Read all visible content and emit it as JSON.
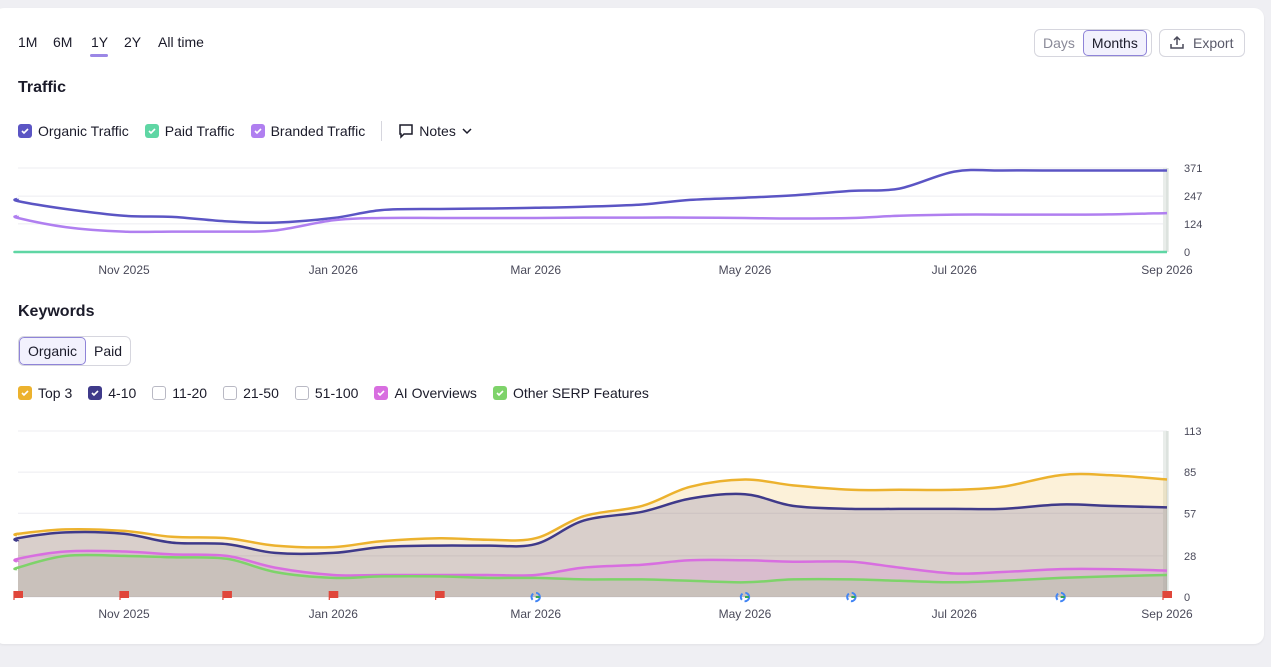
{
  "periods": [
    "1M",
    "6M",
    "1Y",
    "2Y",
    "All time"
  ],
  "active_period": "1Y",
  "granularity": {
    "days": "Days",
    "months": "Months",
    "selected": "Months"
  },
  "export_label": "Export",
  "traffic": {
    "title": "Traffic",
    "legend": [
      {
        "label": "Organic Traffic",
        "color": "#5b55c4",
        "checked": true
      },
      {
        "label": "Paid Traffic",
        "color": "#5fd6a4",
        "checked": true
      },
      {
        "label": "Branded Traffic",
        "color": "#b07ff0",
        "checked": true
      }
    ],
    "notes_label": "Notes"
  },
  "keywords": {
    "title": "Keywords",
    "tabs": [
      "Organic",
      "Paid"
    ],
    "active_tab": "Organic",
    "legend": [
      {
        "label": "Top 3",
        "color": "#ecb22e",
        "checked": true
      },
      {
        "label": "4-10",
        "color": "#3f3a8a",
        "checked": true
      },
      {
        "label": "11-20",
        "color": "#b9b9c4",
        "checked": false
      },
      {
        "label": "21-50",
        "color": "#b9b9c4",
        "checked": false
      },
      {
        "label": "51-100",
        "color": "#b9b9c4",
        "checked": false
      },
      {
        "label": "AI Overviews",
        "color": "#d86ee0",
        "checked": true
      },
      {
        "label": "Other SERP Features",
        "color": "#7ed36a",
        "checked": true
      }
    ]
  },
  "chart_data": [
    {
      "type": "line",
      "title": "Traffic",
      "x": [
        "2025-09-15",
        "2025-10-01",
        "2025-10-15",
        "2025-11-01",
        "2025-11-15",
        "2025-12-01",
        "2025-12-15",
        "2026-01-01",
        "2026-01-15",
        "2026-02-01",
        "2026-02-15",
        "2026-03-01",
        "2026-03-15",
        "2026-04-01",
        "2026-04-15",
        "2026-05-01",
        "2026-05-15",
        "2026-06-01",
        "2026-06-15",
        "2026-07-01",
        "2026-07-15",
        "2026-08-01",
        "2026-08-15",
        "2026-09-01"
      ],
      "x_tick_labels": [
        "Nov 2025",
        "Jan 2026",
        "Mar 2026",
        "May 2026",
        "Jul 2026",
        "Sep 2026"
      ],
      "y_ticks": [
        0,
        124,
        247,
        371
      ],
      "ylim": [
        0,
        371
      ],
      "series": [
        {
          "name": "Organic Traffic",
          "color": "#5b55c4",
          "values": [
            235,
            225,
            190,
            160,
            155,
            135,
            130,
            150,
            185,
            190,
            192,
            195,
            200,
            210,
            230,
            240,
            250,
            270,
            280,
            355,
            360,
            360,
            360,
            360
          ]
        },
        {
          "name": "Paid Traffic",
          "color": "#5fd6a4",
          "values": [
            0,
            0,
            0,
            0,
            0,
            0,
            0,
            0,
            0,
            0,
            0,
            0,
            0,
            0,
            0,
            0,
            0,
            0,
            0,
            0,
            0,
            0,
            0,
            0
          ]
        },
        {
          "name": "Branded Traffic",
          "color": "#b07ff0",
          "values": [
            160,
            150,
            110,
            90,
            90,
            90,
            95,
            140,
            150,
            150,
            150,
            150,
            152,
            152,
            152,
            150,
            148,
            150,
            160,
            165,
            165,
            165,
            166,
            172
          ]
        }
      ]
    },
    {
      "type": "area",
      "title": "Keywords",
      "x": [
        "2025-09-15",
        "2025-10-01",
        "2025-10-15",
        "2025-11-01",
        "2025-11-15",
        "2025-12-01",
        "2025-12-15",
        "2026-01-01",
        "2026-01-15",
        "2026-02-01",
        "2026-02-15",
        "2026-03-01",
        "2026-03-15",
        "2026-04-01",
        "2026-04-15",
        "2026-05-01",
        "2026-05-15",
        "2026-06-01",
        "2026-06-15",
        "2026-07-01",
        "2026-07-15",
        "2026-08-01",
        "2026-08-15",
        "2026-09-01"
      ],
      "x_tick_labels": [
        "Nov 2025",
        "Jan 2026",
        "Mar 2026",
        "May 2026",
        "Jul 2026",
        "Sep 2026"
      ],
      "y_ticks": [
        0,
        28,
        57,
        85,
        113
      ],
      "ylim": [
        0,
        113
      ],
      "series": [
        {
          "name": "Top 3",
          "color": "#ecb22e",
          "values": [
            42,
            43,
            46,
            45,
            41,
            40,
            35,
            34,
            38,
            40,
            39,
            40,
            55,
            62,
            75,
            80,
            76,
            73,
            73,
            73,
            75,
            83,
            83,
            80
          ]
        },
        {
          "name": "4-10",
          "color": "#3f3a8a",
          "values": [
            38,
            40,
            44,
            43,
            37,
            36,
            30,
            30,
            34,
            35,
            35,
            36,
            52,
            58,
            67,
            70,
            62,
            60,
            60,
            60,
            60,
            63,
            62,
            61
          ]
        },
        {
          "name": "AI Overviews",
          "color": "#d86ee0",
          "values": [
            24,
            26,
            31,
            31,
            29,
            28,
            20,
            15,
            15,
            15,
            15,
            15,
            20,
            22,
            25,
            25,
            24,
            24,
            20,
            16,
            17,
            19,
            19,
            18
          ]
        },
        {
          "name": "Other SERP Features",
          "color": "#7ed36a",
          "values": [
            19,
            20,
            28,
            28,
            27,
            26,
            17,
            13,
            14,
            14,
            13,
            13,
            12,
            12,
            11,
            10,
            12,
            12,
            11,
            10,
            11,
            13,
            14,
            15
          ]
        }
      ],
      "event_markers": [
        {
          "kind": "flag",
          "x": "2025-09-01"
        },
        {
          "kind": "flag",
          "x": "2025-11-01"
        },
        {
          "kind": "flag",
          "x": "2025-12-01"
        },
        {
          "kind": "flag",
          "x": "2026-01-01"
        },
        {
          "kind": "flag",
          "x": "2026-02-01"
        },
        {
          "kind": "google",
          "x": "2026-03-01"
        },
        {
          "kind": "google",
          "x": "2026-05-01"
        },
        {
          "kind": "google",
          "x": "2026-06-01"
        },
        {
          "kind": "google",
          "x": "2026-08-01"
        },
        {
          "kind": "flag",
          "x": "2026-09-01"
        }
      ]
    }
  ]
}
